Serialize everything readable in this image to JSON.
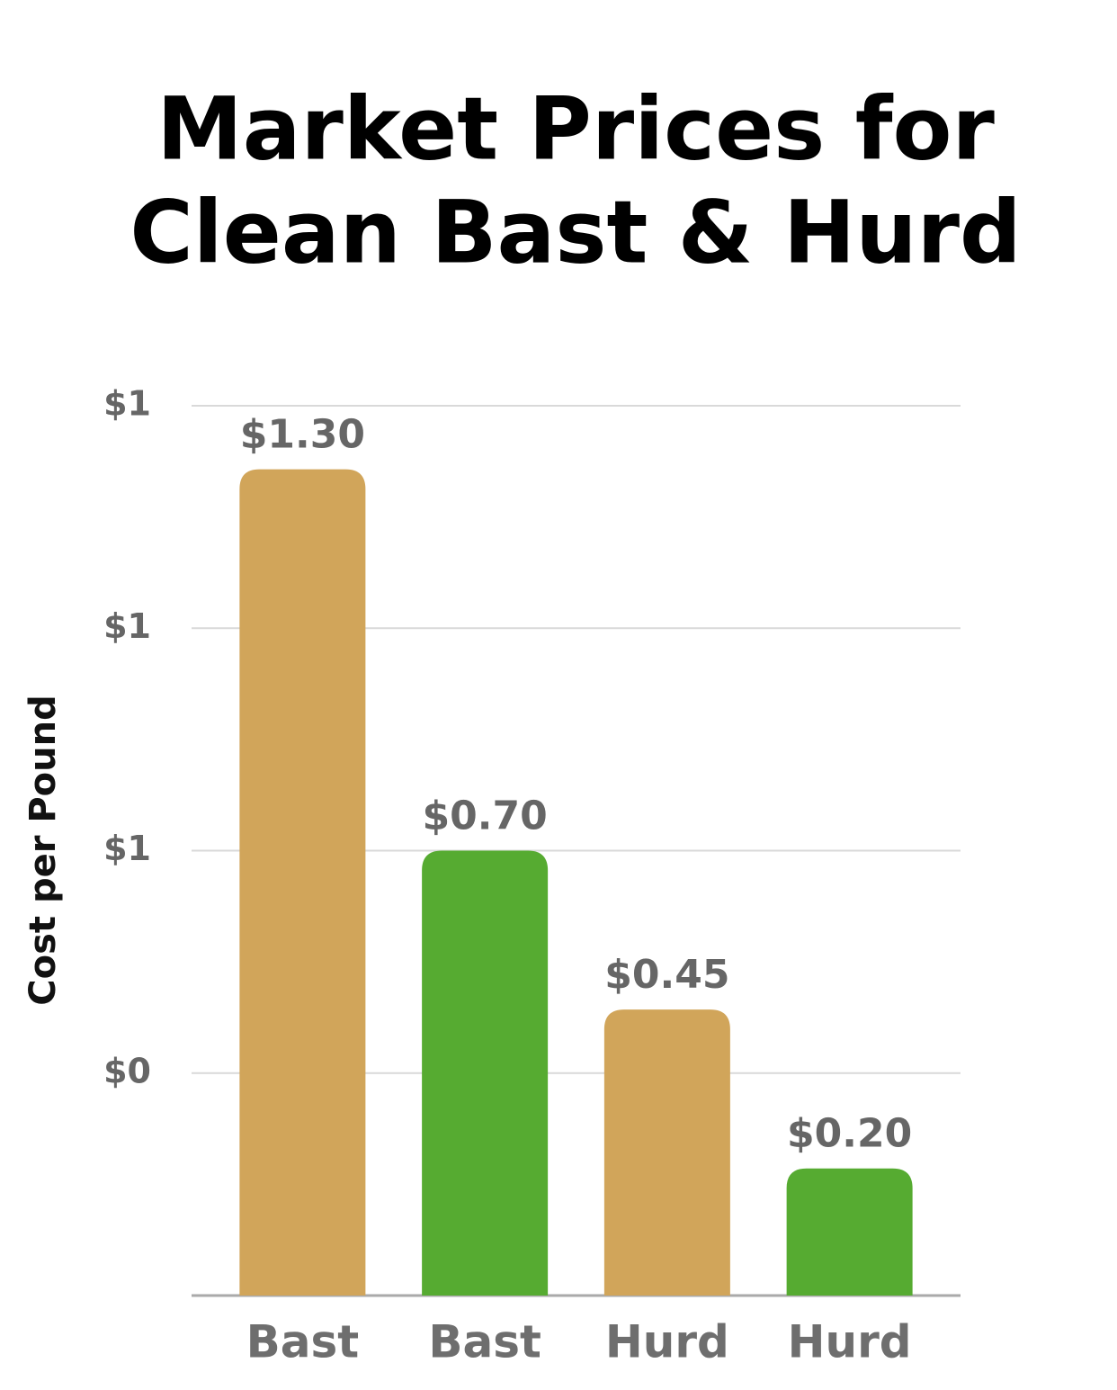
{
  "chart_data": {
    "type": "bar",
    "title": [
      "Market Prices for",
      "Clean Bast & Hurd"
    ],
    "y_label": "Cost per Pound",
    "categories": [
      "Bast",
      "Bast",
      "Hurd",
      "Hurd"
    ],
    "values": [
      1.3,
      0.7,
      0.45,
      0.2
    ],
    "value_labels": [
      "$1.30",
      "$0.70",
      "$0.45",
      "$0.20"
    ],
    "colors": [
      "#d1a55a",
      "#56ab31",
      "#d1a55a",
      "#56ab31"
    ],
    "ylim": [
      0,
      1.4
    ],
    "yticks": [
      {
        "value": 0.35,
        "label": "$0"
      },
      {
        "value": 0.7,
        "label": "$1"
      },
      {
        "value": 1.05,
        "label": "$1"
      },
      {
        "value": 1.4,
        "label": "$1"
      }
    ],
    "grid": true
  }
}
